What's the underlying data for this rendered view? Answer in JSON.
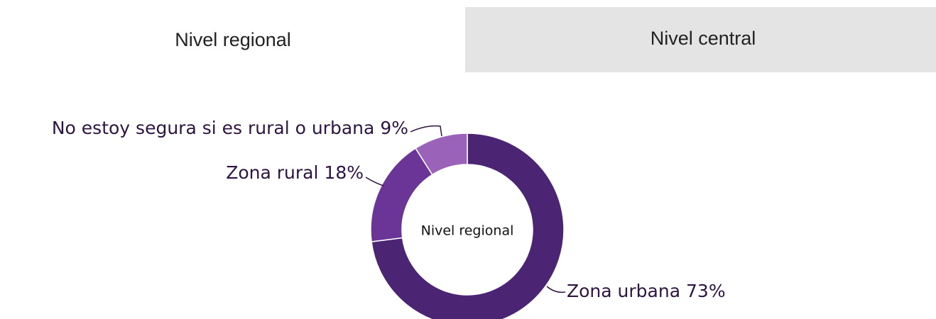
{
  "tabs": [
    "Nivel regional",
    "Nivel central"
  ],
  "chart_data": {
    "type": "donut",
    "center_label": "Nivel regional",
    "categories": [
      "Zona urbana",
      "Zona rural",
      "No estoy segura si es rural o urbana"
    ],
    "values": [
      73,
      18,
      9
    ],
    "value_labels": [
      "73%",
      "18%",
      "9%"
    ],
    "colors": [
      "#4b2574",
      "#6b3598",
      "#9a62b9"
    ]
  }
}
